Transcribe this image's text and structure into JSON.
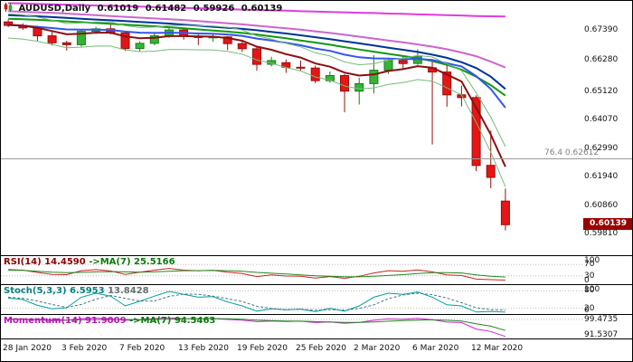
{
  "header": {
    "symbol": "AUDUSD,Daily",
    "open": "0.61019",
    "high": "0.61482",
    "low": "0.59926",
    "close": "0.60139"
  },
  "price_axis": {
    "labels": [
      {
        "text": "0.67390",
        "v": 0.6739
      },
      {
        "text": "0.66280",
        "v": 0.6628
      },
      {
        "text": "0.65120",
        "v": 0.6512
      },
      {
        "text": "0.64070",
        "v": 0.6407
      },
      {
        "text": "0.62990",
        "v": 0.6299
      },
      {
        "text": "0.61940",
        "v": 0.6194
      },
      {
        "text": "0.60860",
        "v": 0.6086
      },
      {
        "text": "0.59810",
        "v": 0.5981
      }
    ],
    "marker": {
      "text": "0.60139",
      "value": 0.60139,
      "bg": "#9b0000"
    }
  },
  "time_axis": {
    "ticks": [
      {
        "label": "28 Jan 2020",
        "i": 0
      },
      {
        "label": "3 Feb 2020",
        "i": 4
      },
      {
        "label": "7 Feb 2020",
        "i": 8
      },
      {
        "label": "13 Feb 2020",
        "i": 12
      },
      {
        "label": "19 Feb 2020",
        "i": 16
      },
      {
        "label": "25 Feb 2020",
        "i": 20
      },
      {
        "label": "2 Mar 2020",
        "i": 24
      },
      {
        "label": "6 Mar 2020",
        "i": 28
      },
      {
        "label": "12 Mar 2020",
        "i": 32
      }
    ]
  },
  "panels": {
    "rsi": {
      "title": "RSI(14) 14.4590",
      "ma_title": "->MA(7) 25.5166",
      "scale": [
        {
          "text": "100",
          "v": 100
        },
        {
          "text": "70",
          "v": 70
        },
        {
          "text": "30",
          "v": 30
        },
        {
          "text": "0",
          "v": 0
        }
      ]
    },
    "stoch": {
      "title": "Stoch(5,3,3) 6.5953",
      "value2": "13.8428",
      "scale": [
        {
          "text": "100",
          "v": 100
        },
        {
          "text": "80",
          "v": 80
        },
        {
          "text": "20",
          "v": 20
        },
        {
          "text": "0",
          "v": 0
        }
      ]
    },
    "momentum": {
      "title": "Momentum(14) 91.9009",
      "ma_title": "->MA(7) 94.5463",
      "scale": [
        {
          "text": "99.4735",
          "v": 99.4735
        },
        {
          "text": "91.5307",
          "v": 91.5307
        }
      ]
    }
  },
  "chart_data": {
    "type": "candlestick",
    "symbol": "AUDUSD",
    "timeframe": "Daily",
    "price_range": [
      0.59,
      0.6845
    ],
    "candle_colors": {
      "up_fill": "#33b533",
      "up_border": "#1d7a1d",
      "down_fill": "#e41616",
      "down_border": "#9c0c0c"
    },
    "dates": [
      "28 Jan",
      "29 Jan",
      "30 Jan",
      "31 Jan",
      "3 Feb",
      "4 Feb",
      "5 Feb",
      "6 Feb",
      "7 Feb",
      "10 Feb",
      "11 Feb",
      "12 Feb",
      "13 Feb",
      "14 Feb",
      "17 Feb",
      "18 Feb",
      "19 Feb",
      "20 Feb",
      "21 Feb",
      "24 Feb",
      "25 Feb",
      "26 Feb",
      "27 Feb",
      "28 Feb",
      "2 Mar",
      "3 Mar",
      "4 Mar",
      "5 Mar",
      "6 Mar",
      "9 Mar",
      "10 Mar",
      "11 Mar",
      "12 Mar",
      "13 Mar",
      "16 Mar"
    ],
    "ohlc": [
      [
        0.677,
        0.6778,
        0.675,
        0.6757
      ],
      [
        0.6757,
        0.6765,
        0.674,
        0.6748
      ],
      [
        0.6748,
        0.6756,
        0.67,
        0.6718
      ],
      [
        0.6718,
        0.6733,
        0.6682,
        0.6692
      ],
      [
        0.6692,
        0.67,
        0.6663,
        0.6685
      ],
      [
        0.6685,
        0.674,
        0.6678,
        0.6735
      ],
      [
        0.6735,
        0.6752,
        0.6725,
        0.6744
      ],
      [
        0.6744,
        0.6761,
        0.6723,
        0.6729
      ],
      [
        0.6729,
        0.6735,
        0.6662,
        0.6671
      ],
      [
        0.6671,
        0.6698,
        0.6658,
        0.669
      ],
      [
        0.669,
        0.6729,
        0.6683,
        0.6718
      ],
      [
        0.6718,
        0.6748,
        0.6711,
        0.674
      ],
      [
        0.674,
        0.6745,
        0.6704,
        0.6717
      ],
      [
        0.6717,
        0.6723,
        0.6684,
        0.6712
      ],
      [
        0.6712,
        0.6723,
        0.6696,
        0.6714
      ],
      [
        0.6714,
        0.6717,
        0.6665,
        0.6689
      ],
      [
        0.6689,
        0.6697,
        0.6658,
        0.667
      ],
      [
        0.667,
        0.6675,
        0.6588,
        0.6612
      ],
      [
        0.6612,
        0.664,
        0.6604,
        0.6626
      ],
      [
        0.6618,
        0.663,
        0.658,
        0.6601
      ],
      [
        0.6601,
        0.6626,
        0.6586,
        0.6598
      ],
      [
        0.6598,
        0.6607,
        0.6542,
        0.6551
      ],
      [
        0.6551,
        0.6585,
        0.6543,
        0.657
      ],
      [
        0.657,
        0.6576,
        0.6433,
        0.6512
      ],
      [
        0.6512,
        0.6562,
        0.6462,
        0.654
      ],
      [
        0.654,
        0.6646,
        0.6503,
        0.659
      ],
      [
        0.659,
        0.6636,
        0.6576,
        0.6626
      ],
      [
        0.6626,
        0.664,
        0.6597,
        0.6615
      ],
      [
        0.6615,
        0.6668,
        0.661,
        0.664
      ],
      [
        0.6599,
        0.6621,
        0.6313,
        0.6583
      ],
      [
        0.6583,
        0.6618,
        0.6454,
        0.6498
      ],
      [
        0.6498,
        0.6532,
        0.6455,
        0.6488
      ],
      [
        0.6488,
        0.6496,
        0.6214,
        0.6235
      ],
      [
        0.6235,
        0.6365,
        0.615,
        0.619
      ],
      [
        0.61019,
        0.61482,
        0.59926,
        0.60139
      ]
    ],
    "overlays": [
      {
        "name": "ma-magenta",
        "color": "#e03ce0",
        "width": 2,
        "values": [
          0.684,
          0.6839,
          0.6837,
          0.6836,
          0.6834,
          0.6833,
          0.6831,
          0.683,
          0.6828,
          0.6827,
          0.6825,
          0.6824,
          0.6822,
          0.6821,
          0.6819,
          0.6818,
          0.6816,
          0.6815,
          0.6813,
          0.6812,
          0.681,
          0.6809,
          0.6807,
          0.6806,
          0.6804,
          0.6803,
          0.6801,
          0.68,
          0.6798,
          0.6797,
          0.6795,
          0.6794,
          0.6792,
          0.6791,
          0.679
        ]
      },
      {
        "name": "ma-orchid",
        "color": "#cc66cc",
        "width": 2,
        "values": [
          0.681,
          0.6808,
          0.6806,
          0.6804,
          0.6801,
          0.6798,
          0.6795,
          0.6792,
          0.6789,
          0.6786,
          0.6783,
          0.678,
          0.6777,
          0.6773,
          0.6769,
          0.6765,
          0.6761,
          0.6756,
          0.6751,
          0.6746,
          0.6741,
          0.6735,
          0.6729,
          0.6722,
          0.6715,
          0.6708,
          0.6701,
          0.6694,
          0.6686,
          0.6678,
          0.6668,
          0.6656,
          0.6642,
          0.6622,
          0.66
        ]
      },
      {
        "name": "ma-navy",
        "color": "#003399",
        "width": 2,
        "values": [
          0.6795,
          0.6793,
          0.6791,
          0.6788,
          0.6785,
          0.6782,
          0.6779,
          0.6776,
          0.6773,
          0.677,
          0.6767,
          0.6764,
          0.676,
          0.6756,
          0.6752,
          0.6748,
          0.6744,
          0.6739,
          0.6733,
          0.6727,
          0.672,
          0.6713,
          0.6706,
          0.6698,
          0.669,
          0.6682,
          0.6674,
          0.6666,
          0.6658,
          0.6648,
          0.6636,
          0.662,
          0.6598,
          0.6566,
          0.652
        ]
      },
      {
        "name": "ma-green",
        "color": "#119911",
        "width": 2,
        "values": [
          0.6782,
          0.678,
          0.6778,
          0.6775,
          0.6772,
          0.6769,
          0.6766,
          0.6763,
          0.676,
          0.6757,
          0.6754,
          0.675,
          0.6746,
          0.6742,
          0.6738,
          0.6734,
          0.6729,
          0.6723,
          0.6716,
          0.6709,
          0.6701,
          0.6693,
          0.6685,
          0.6676,
          0.6667,
          0.6659,
          0.6651,
          0.6643,
          0.6635,
          0.6624,
          0.661,
          0.6592,
          0.6566,
          0.6534,
          0.6495
        ]
      },
      {
        "name": "ma-blue",
        "color": "#3355ee",
        "width": 2,
        "values": [
          0.6758,
          0.6756,
          0.6752,
          0.6747,
          0.6742,
          0.6741,
          0.6741,
          0.674,
          0.6734,
          0.673,
          0.6729,
          0.673,
          0.6729,
          0.6727,
          0.6726,
          0.6723,
          0.6718,
          0.6708,
          0.6701,
          0.6692,
          0.6683,
          0.6671,
          0.6662,
          0.6648,
          0.6638,
          0.6634,
          0.6633,
          0.6631,
          0.6632,
          0.6628,
          0.6616,
          0.6604,
          0.6568,
          0.652,
          0.645
        ]
      },
      {
        "name": "ma-darkred",
        "color": "#8b1010",
        "width": 2,
        "values": [
          0.676,
          0.6756,
          0.6748,
          0.6736,
          0.6724,
          0.6726,
          0.673,
          0.673,
          0.6716,
          0.6709,
          0.6711,
          0.6717,
          0.6717,
          0.6716,
          0.6715,
          0.671,
          0.67,
          0.6678,
          0.6666,
          0.665,
          0.6637,
          0.6615,
          0.6603,
          0.6581,
          0.657,
          0.6574,
          0.6587,
          0.6594,
          0.6605,
          0.6599,
          0.6574,
          0.6548,
          0.645,
          0.635,
          0.623
        ]
      },
      {
        "name": "channel-upper",
        "color": "#77bb77",
        "width": 1,
        "values": [
          0.68,
          0.6796,
          0.6788,
          0.6776,
          0.6764,
          0.6766,
          0.677,
          0.677,
          0.6756,
          0.6749,
          0.6751,
          0.6757,
          0.6757,
          0.6756,
          0.6755,
          0.675,
          0.674,
          0.6718,
          0.6706,
          0.669,
          0.6677,
          0.6655,
          0.6643,
          0.6621,
          0.661,
          0.6614,
          0.6627,
          0.6634,
          0.6645,
          0.6639,
          0.6614,
          0.6588,
          0.6505,
          0.6415,
          0.6305
        ]
      },
      {
        "name": "channel-lower",
        "color": "#77bb77",
        "width": 1,
        "values": [
          0.671,
          0.6706,
          0.6698,
          0.6686,
          0.6674,
          0.6676,
          0.668,
          0.668,
          0.6666,
          0.6659,
          0.6661,
          0.6667,
          0.6667,
          0.6666,
          0.6665,
          0.666,
          0.665,
          0.6628,
          0.6616,
          0.66,
          0.6587,
          0.6565,
          0.6553,
          0.6531,
          0.652,
          0.6524,
          0.6537,
          0.6544,
          0.6555,
          0.6549,
          0.6524,
          0.6498,
          0.6395,
          0.6285,
          0.6155
        ]
      }
    ],
    "annotations": {
      "fib_level": {
        "pct_label": "76.4",
        "price_label": "0.62612",
        "price": 0.62612,
        "color": "#9a9a9a"
      }
    },
    "indicators": {
      "rsi": {
        "range": [
          0,
          100
        ],
        "grid": [
          70,
          30
        ],
        "series": [
          {
            "name": "rsi",
            "color": "#cc2222",
            "width": 1,
            "values": [
              52,
              50,
              42,
              35,
              34,
              48,
              52,
              47,
              35,
              43,
              50,
              56,
              50,
              48,
              49,
              43,
              38,
              27,
              33,
              29,
              28,
              22,
              27,
              21,
              28,
              40,
              48,
              46,
              51,
              44,
              33,
              31,
              18,
              16,
              14.46
            ]
          },
          {
            "name": "rsi-ma",
            "color": "#228822",
            "width": 1,
            "values": [
              50,
              49,
              46,
              43,
              41,
              42,
              44,
              45,
              44,
              43,
              44,
              46,
              48,
              48,
              49,
              48,
              46,
              42,
              39,
              36,
              33,
              30,
              28,
              26,
              26,
              28,
              31,
              34,
              38,
              41,
              41,
              40,
              33,
              28,
              25.52
            ]
          }
        ]
      },
      "stoch": {
        "range": [
          0,
          100
        ],
        "grid": [
          80,
          20
        ],
        "series": [
          {
            "name": "stoch-k",
            "color": "#00a0a0",
            "width": 1,
            "values": [
              55,
              50,
              30,
              18,
              22,
              58,
              72,
              62,
              28,
              44,
              62,
              78,
              68,
              58,
              60,
              42,
              28,
              10,
              18,
              15,
              17,
              8,
              20,
              10,
              28,
              58,
              72,
              68,
              76,
              58,
              32,
              28,
              7,
              9,
              6.6
            ]
          },
          {
            "name": "stoch-d",
            "color": "#447788",
            "width": 1,
            "dash": "3,2",
            "values": [
              58,
              54,
              45,
              33,
              23,
              33,
              51,
              64,
              54,
              45,
              45,
              61,
              69,
              68,
              62,
              53,
              43,
              27,
              19,
              14,
              17,
              13,
              15,
              13,
              19,
              32,
              53,
              66,
              72,
              67,
              55,
              39,
              22,
              15,
              13.8
            ]
          }
        ]
      },
      "momentum": {
        "range": [
          91.0,
          101.5
        ],
        "grid": [
          99.4735
        ],
        "series": [
          {
            "name": "momentum",
            "color": "#cc22cc",
            "width": 1,
            "values": [
              99.8,
              99.7,
              99.3,
              99.0,
              99.1,
              99.9,
              100.1,
              99.8,
              99.1,
              99.4,
              99.9,
              100.2,
              99.9,
              99.8,
              99.9,
              99.5,
              99.2,
              98.5,
              98.8,
              98.6,
              98.7,
              98.1,
              98.4,
              97.8,
              98.2,
              99.1,
              99.8,
              99.6,
              100.0,
              99.4,
              98.3,
              98.1,
              95.2,
              94.1,
              91.9
            ]
          },
          {
            "name": "momentum-ma",
            "color": "#228822",
            "width": 1,
            "values": [
              99.6,
              99.6,
              99.5,
              99.3,
              99.2,
              99.3,
              99.4,
              99.5,
              99.5,
              99.4,
              99.5,
              99.6,
              99.8,
              99.9,
              99.9,
              99.8,
              99.6,
              99.2,
              99.0,
              98.8,
              98.7,
              98.5,
              98.4,
              98.2,
              98.2,
              98.4,
              98.7,
              99.0,
              99.2,
              99.3,
              99.1,
              98.8,
              97.6,
              96.5,
              94.55
            ]
          }
        ]
      }
    }
  }
}
